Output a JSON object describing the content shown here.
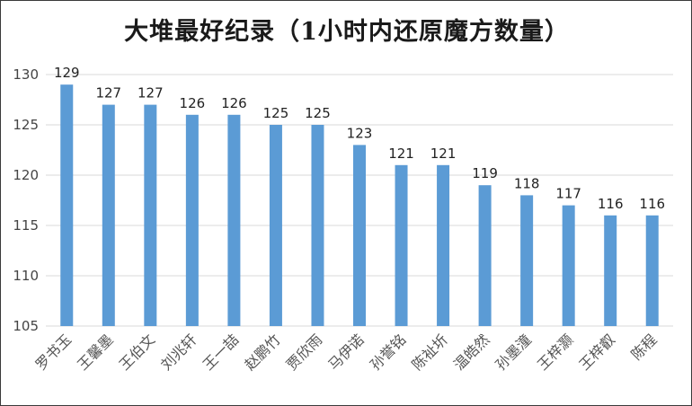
{
  "chart_data": {
    "type": "bar",
    "title": "大堆最好纪录（1小时内还原魔方数量）",
    "categories": [
      "罗书玉",
      "王馨墨",
      "王伯文",
      "刘兆轩",
      "王一喆",
      "赵鹏竹",
      "贾欣雨",
      "马伊诺",
      "孙誉铭",
      "陈祉圻",
      "温皓然",
      "孙墨潼",
      "王梓灏",
      "王梓叡",
      "陈程"
    ],
    "values": [
      129,
      127,
      127,
      126,
      126,
      125,
      125,
      123,
      121,
      121,
      119,
      118,
      117,
      116,
      116
    ],
    "ylim": [
      105,
      130
    ],
    "yticks": [
      105,
      110,
      115,
      120,
      125,
      130
    ],
    "grid": true,
    "bar_color": "#5B9BD5",
    "grid_color": "#D9D9D9",
    "xlabel": "",
    "ylabel": ""
  }
}
